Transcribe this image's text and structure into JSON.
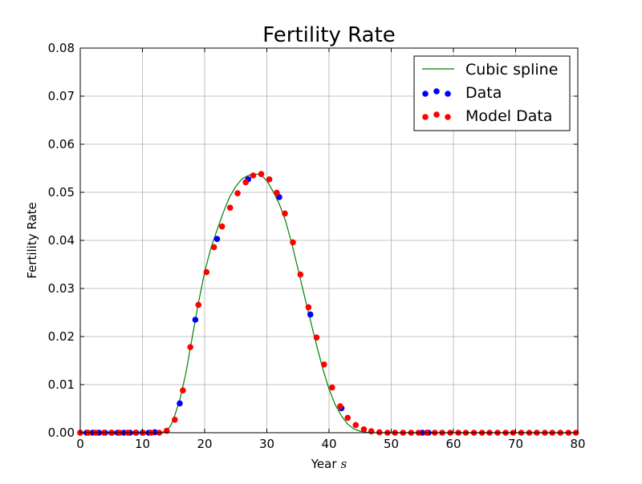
{
  "chart_data": {
    "type": "line",
    "title": "Fertility Rate",
    "xlabel": "Year",
    "xlabel_math": "s",
    "ylabel": "Fertility Rate",
    "xlim": [
      0,
      80
    ],
    "ylim": [
      0,
      0.08
    ],
    "xticks": [
      0,
      10,
      20,
      30,
      40,
      50,
      60,
      70,
      80
    ],
    "xtick_labels": [
      "0",
      "10",
      "20",
      "30",
      "40",
      "50",
      "60",
      "70",
      "80"
    ],
    "yticks": [
      0,
      0.01,
      0.02,
      0.03,
      0.04,
      0.05,
      0.06,
      0.07,
      0.08
    ],
    "ytick_labels": [
      "0.00",
      "0.01",
      "0.02",
      "0.03",
      "0.04",
      "0.05",
      "0.06",
      "0.07",
      "0.08"
    ],
    "grid": true,
    "legend_position": "top-right",
    "series": [
      {
        "name": "Cubic spline",
        "kind": "line",
        "color": "#008000",
        "x": [
          0,
          9,
          11.5,
          12.5,
          13.5,
          14,
          14.5,
          15,
          16,
          17,
          18,
          19,
          20,
          21,
          22,
          23,
          24,
          25,
          26,
          27,
          28,
          29,
          30,
          31,
          32,
          33,
          34,
          35,
          36,
          37,
          38,
          39,
          40,
          41,
          42,
          43,
          44,
          45,
          46,
          47,
          48,
          50,
          55,
          80
        ],
        "y": [
          0,
          0,
          0,
          5e-05,
          0.0002,
          0.0006,
          0.0014,
          0.0028,
          0.0068,
          0.0125,
          0.0198,
          0.027,
          0.0334,
          0.0384,
          0.0422,
          0.0458,
          0.049,
          0.0512,
          0.0528,
          0.0535,
          0.0538,
          0.0537,
          0.0524,
          0.0502,
          0.0476,
          0.0441,
          0.0394,
          0.0341,
          0.0287,
          0.0234,
          0.0182,
          0.0133,
          0.0091,
          0.0058,
          0.0035,
          0.0018,
          0.0008,
          0.0003,
          0.0001,
          3e-05,
          0,
          0,
          0,
          0
        ]
      },
      {
        "name": "Data",
        "kind": "scatter",
        "color": "#0000ff",
        "x": [
          0,
          1,
          2,
          3,
          4,
          5,
          6,
          7,
          8,
          9,
          10,
          11,
          12,
          16,
          18.5,
          22,
          27,
          32,
          37,
          42,
          55,
          56
        ],
        "y": [
          0,
          0,
          0,
          0,
          0,
          0,
          0,
          0,
          0,
          0,
          0,
          0,
          0.0001,
          0.0061,
          0.0235,
          0.0403,
          0.0527,
          0.049,
          0.0246,
          0.0051,
          0,
          0
        ]
      },
      {
        "name": "Model Data",
        "kind": "scatter",
        "color": "#ff0000",
        "x": [
          0,
          1.3,
          2.5,
          3.8,
          5.1,
          6.3,
          7.6,
          8.9,
          10.1,
          11.4,
          12.7,
          13.9,
          15.2,
          16.5,
          17.7,
          19,
          20.3,
          21.5,
          22.8,
          24.1,
          25.3,
          26.6,
          27.8,
          29.1,
          30.4,
          31.6,
          32.9,
          34.2,
          35.4,
          36.7,
          38,
          39.2,
          40.5,
          41.8,
          43,
          44.3,
          45.6,
          46.8,
          48.1,
          49.4,
          50.6,
          51.9,
          53.2,
          54.4,
          55.7,
          57,
          58.2,
          59.5,
          60.8,
          62,
          63.3,
          64.6,
          65.8,
          67.1,
          68.4,
          69.6,
          70.9,
          72.2,
          73.4,
          74.7,
          75.9,
          77.2,
          78.5,
          79.7
        ],
        "y": [
          0,
          0,
          0,
          0,
          0,
          0,
          0,
          0,
          0,
          0,
          0,
          0.0004,
          0.0027,
          0.0088,
          0.0178,
          0.0266,
          0.0334,
          0.0386,
          0.0429,
          0.0468,
          0.0498,
          0.0521,
          0.0535,
          0.0538,
          0.0527,
          0.0499,
          0.0456,
          0.0396,
          0.0329,
          0.0261,
          0.0198,
          0.0142,
          0.0094,
          0.0055,
          0.0031,
          0.0016,
          0.0007,
          0.0003,
          0.0001,
          0,
          0,
          0,
          0,
          0,
          0,
          0,
          0,
          0,
          0,
          0,
          0,
          0,
          0,
          0,
          0,
          0,
          0,
          0,
          0,
          0,
          0,
          0,
          0,
          0
        ]
      }
    ]
  }
}
